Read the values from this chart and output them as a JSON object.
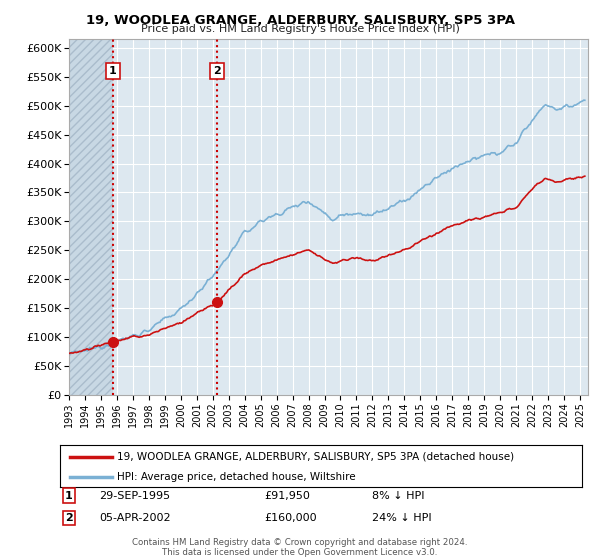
{
  "title": "19, WOODLEA GRANGE, ALDERBURY, SALISBURY, SP5 3PA",
  "subtitle": "Price paid vs. HM Land Registry's House Price Index (HPI)",
  "ylabel_ticks": [
    "£0",
    "£50K",
    "£100K",
    "£150K",
    "£200K",
    "£250K",
    "£300K",
    "£350K",
    "£400K",
    "£450K",
    "£500K",
    "£550K",
    "£600K"
  ],
  "ytick_values": [
    0,
    50000,
    100000,
    150000,
    200000,
    250000,
    300000,
    350000,
    400000,
    450000,
    500000,
    550000,
    600000
  ],
  "ylim": [
    0,
    615000
  ],
  "xlim_start": 1993.0,
  "xlim_end": 2025.5,
  "grid_color": "#ffffff",
  "bg_color": "#dde8f0",
  "hatch_color": "#c8d8e4",
  "sale1_x": 1995.75,
  "sale1_y": 91950,
  "sale1_label": "1",
  "sale1_date": "29-SEP-1995",
  "sale1_price": "£91,950",
  "sale1_hpi": "8% ↓ HPI",
  "sale2_x": 2002.27,
  "sale2_y": 160000,
  "sale2_label": "2",
  "sale2_date": "05-APR-2002",
  "sale2_price": "£160,000",
  "sale2_hpi": "24% ↓ HPI",
  "vline_color": "#cc0000",
  "line1_color": "#cc1111",
  "line2_color": "#7ab0d4",
  "marker_color": "#cc1111",
  "copyright_text": "Contains HM Land Registry data © Crown copyright and database right 2024.\nThis data is licensed under the Open Government Licence v3.0.",
  "legend1_label": "19, WOODLEA GRANGE, ALDERBURY, SALISBURY, SP5 3PA (detached house)",
  "legend2_label": "HPI: Average price, detached house, Wiltshire",
  "xtick_years": [
    1993,
    1994,
    1995,
    1996,
    1997,
    1998,
    1999,
    2000,
    2001,
    2002,
    2003,
    2004,
    2005,
    2006,
    2007,
    2008,
    2009,
    2010,
    2011,
    2012,
    2013,
    2014,
    2015,
    2016,
    2017,
    2018,
    2019,
    2020,
    2021,
    2022,
    2023,
    2024,
    2025
  ]
}
